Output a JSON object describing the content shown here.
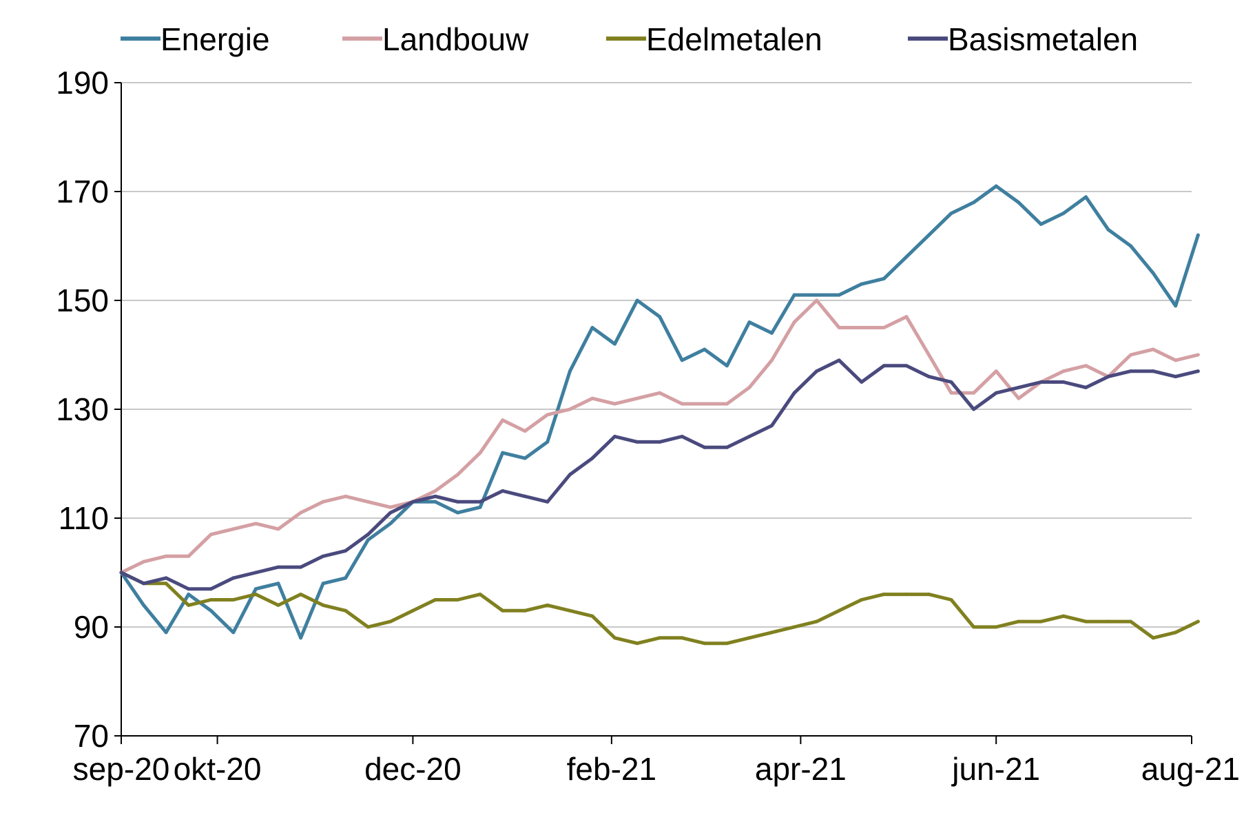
{
  "chart_data": {
    "type": "line",
    "title": "",
    "xlabel": "",
    "ylabel": "",
    "ylim": [
      70,
      190
    ],
    "yticks": [
      70,
      90,
      110,
      130,
      150,
      170,
      190
    ],
    "grid": true,
    "legend_position": "top",
    "x": [
      "2020-09-01",
      "2020-09-08",
      "2020-09-15",
      "2020-09-22",
      "2020-09-29",
      "2020-10-06",
      "2020-10-13",
      "2020-10-20",
      "2020-10-27",
      "2020-11-03",
      "2020-11-10",
      "2020-11-17",
      "2020-11-24",
      "2020-12-01",
      "2020-12-08",
      "2020-12-15",
      "2020-12-22",
      "2020-12-29",
      "2021-01-05",
      "2021-01-12",
      "2021-01-19",
      "2021-01-26",
      "2021-02-02",
      "2021-02-09",
      "2021-02-16",
      "2021-02-23",
      "2021-03-02",
      "2021-03-09",
      "2021-03-16",
      "2021-03-23",
      "2021-03-30",
      "2021-04-06",
      "2021-04-13",
      "2021-04-20",
      "2021-04-27",
      "2021-05-04",
      "2021-05-11",
      "2021-05-18",
      "2021-05-25",
      "2021-06-01",
      "2021-06-08",
      "2021-06-15",
      "2021-06-22",
      "2021-06-29",
      "2021-07-06",
      "2021-07-13",
      "2021-07-20",
      "2021-07-27",
      "2021-08-03"
    ],
    "xticks": [
      {
        "label": "sep-20",
        "date": "2020-09-01"
      },
      {
        "label": "okt-20",
        "date": "2020-10-01"
      },
      {
        "label": "dec-20",
        "date": "2020-12-01"
      },
      {
        "label": "feb-21",
        "date": "2021-02-01"
      },
      {
        "label": "apr-21",
        "date": "2021-04-01"
      },
      {
        "label": "jun-21",
        "date": "2021-06-01"
      },
      {
        "label": "aug-21",
        "date": "2021-08-01"
      }
    ],
    "series": [
      {
        "name": "Energie",
        "color": "#3f7f9f",
        "values": [
          100,
          94,
          89,
          96,
          93,
          89,
          97,
          98,
          88,
          98,
          99,
          106,
          109,
          113,
          113,
          111,
          112,
          122,
          121,
          124,
          137,
          145,
          142,
          150,
          147,
          139,
          141,
          138,
          146,
          144,
          151,
          151,
          151,
          153,
          154,
          158,
          162,
          166,
          168,
          171,
          168,
          164,
          166,
          169,
          163,
          160,
          155,
          149,
          162
        ]
      },
      {
        "name": "Landbouw",
        "color": "#d4a0a4",
        "values": [
          100,
          102,
          103,
          103,
          107,
          108,
          109,
          108,
          111,
          113,
          114,
          113,
          112,
          113,
          115,
          118,
          122,
          128,
          126,
          129,
          130,
          132,
          131,
          132,
          133,
          131,
          131,
          131,
          134,
          139,
          146,
          150,
          145,
          145,
          145,
          147,
          140,
          133,
          133,
          137,
          132,
          135,
          137,
          138,
          136,
          140,
          141,
          139,
          140
        ]
      },
      {
        "name": "Edelmetalen",
        "color": "#808020",
        "values": [
          100,
          98,
          98,
          94,
          95,
          95,
          96,
          94,
          96,
          94,
          93,
          90,
          91,
          93,
          95,
          95,
          96,
          93,
          93,
          94,
          93,
          92,
          88,
          87,
          88,
          88,
          87,
          87,
          88,
          89,
          90,
          91,
          93,
          95,
          96,
          96,
          96,
          95,
          90,
          90,
          91,
          91,
          92,
          91,
          91,
          91,
          88,
          89,
          91
        ]
      },
      {
        "name": "Basismetalen",
        "color": "#4a4a7e",
        "values": [
          100,
          98,
          99,
          97,
          97,
          99,
          100,
          101,
          101,
          103,
          104,
          107,
          111,
          113,
          114,
          113,
          113,
          115,
          114,
          113,
          118,
          121,
          125,
          124,
          124,
          125,
          123,
          123,
          125,
          127,
          133,
          137,
          139,
          135,
          138,
          138,
          136,
          135,
          130,
          133,
          134,
          135,
          135,
          134,
          136,
          137,
          137,
          136,
          137
        ]
      }
    ]
  }
}
